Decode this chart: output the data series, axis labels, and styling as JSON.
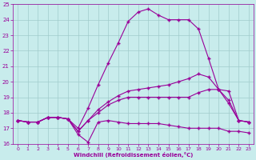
{
  "xlabel": "Windchill (Refroidissement éolien,°C)",
  "bg_color": "#c8ecec",
  "grid_color": "#a0cccc",
  "line_color": "#990099",
  "xlim": [
    -0.5,
    23.5
  ],
  "ylim": [
    16,
    25
  ],
  "yticks": [
    16,
    17,
    18,
    19,
    20,
    21,
    22,
    23,
    24,
    25
  ],
  "xticks": [
    0,
    1,
    2,
    3,
    4,
    5,
    6,
    7,
    8,
    9,
    10,
    11,
    12,
    13,
    14,
    15,
    16,
    17,
    18,
    19,
    20,
    21,
    22,
    23
  ],
  "series1_x": [
    0,
    1,
    2,
    3,
    4,
    5,
    6,
    7,
    8,
    9,
    10,
    11,
    12,
    13,
    14,
    15,
    16,
    17,
    18,
    19,
    20,
    21,
    22,
    23
  ],
  "series1_y": [
    17.5,
    17.4,
    17.4,
    17.7,
    17.7,
    17.6,
    16.6,
    16.1,
    17.4,
    17.5,
    17.4,
    17.3,
    17.3,
    17.3,
    17.3,
    17.2,
    17.1,
    17.0,
    17.0,
    17.0,
    17.0,
    16.8,
    16.8,
    16.7
  ],
  "series2_x": [
    0,
    1,
    2,
    3,
    4,
    5,
    6,
    7,
    8,
    9,
    10,
    11,
    12,
    13,
    14,
    15,
    16,
    17,
    18,
    19,
    20,
    21,
    22,
    23
  ],
  "series2_y": [
    17.5,
    17.4,
    17.4,
    17.7,
    17.7,
    17.6,
    16.8,
    17.5,
    18.2,
    18.7,
    19.1,
    19.4,
    19.5,
    19.6,
    19.7,
    19.8,
    20.0,
    20.2,
    20.5,
    20.3,
    19.5,
    18.8,
    17.5,
    17.4
  ],
  "series3_x": [
    0,
    1,
    2,
    3,
    4,
    5,
    6,
    7,
    8,
    9,
    10,
    11,
    12,
    13,
    14,
    15,
    16,
    17,
    18,
    19,
    20,
    21,
    22,
    23
  ],
  "series3_y": [
    17.5,
    17.4,
    17.4,
    17.7,
    17.7,
    17.6,
    17.0,
    18.3,
    19.8,
    21.2,
    22.5,
    23.9,
    24.5,
    24.7,
    24.3,
    24.0,
    24.0,
    24.0,
    23.4,
    21.5,
    19.5,
    18.6,
    17.5,
    17.4
  ],
  "series4_x": [
    0,
    1,
    2,
    3,
    4,
    5,
    6,
    7,
    8,
    9,
    10,
    11,
    12,
    13,
    14,
    15,
    16,
    17,
    18,
    19,
    20,
    21,
    22,
    23
  ],
  "series4_y": [
    17.5,
    17.4,
    17.4,
    17.7,
    17.7,
    17.6,
    16.8,
    17.5,
    18.0,
    18.5,
    18.8,
    19.0,
    19.0,
    19.0,
    19.0,
    19.0,
    19.0,
    19.0,
    19.3,
    19.5,
    19.5,
    19.4,
    17.5,
    17.4
  ]
}
